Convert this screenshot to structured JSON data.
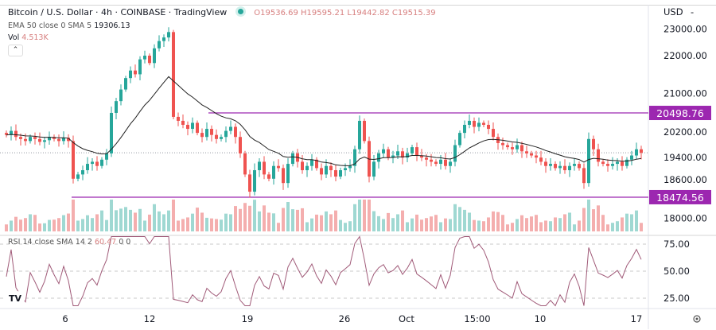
{
  "header": {
    "symbol": "Bitcoin / U.S. Dollar · 4h · COINBASE · TradingView",
    "status_color": "#26a69a",
    "ohlc": "O19536.69 H19595.21 L19442.82 C19515.39",
    "ema_label": "EMA 50 close 0 SMA 5",
    "ema_value": "19306.13",
    "vol_label": "Vol",
    "vol_value": "4.513K",
    "rsi_label": "RSI 14 close SMA 14 2",
    "rsi_value": "60.47",
    "rsi_extra": "0 0"
  },
  "price_axis": {
    "currency": "USD",
    "ticks": [
      "23000.00",
      "22000.00",
      "21000.00",
      "20200.00",
      "19400.00",
      "18600.00",
      "18000.00"
    ],
    "tick_values": [
      23000,
      22000,
      21000,
      20200,
      19400,
      18600,
      18000
    ]
  },
  "rsi_axis": {
    "ticks": [
      "75.00",
      "50.00",
      "25.00"
    ],
    "tick_values": [
      75,
      50,
      25
    ]
  },
  "time_axis": {
    "labels": [
      "6",
      "12",
      "19",
      "26",
      "Oct",
      "15:00",
      "10",
      "17"
    ]
  },
  "levels": [
    {
      "label": "20498.76",
      "value": 20498.76
    },
    {
      "label": "18474.56",
      "value": 18474.56
    }
  ],
  "colors": {
    "up": "#26a69a",
    "down": "#ef5350",
    "level": "#9c27b0",
    "rsi": "#a05a78",
    "ema": "#222222"
  },
  "chart_data": {
    "type": "candlestick",
    "title": "Bitcoin / U.S. Dollar · 4h · COINBASE",
    "ylabel": "USD",
    "ylim": [
      18000,
      23000
    ],
    "scale": "log",
    "closes": [
      19950,
      20050,
      19900,
      19850,
      19800,
      19900,
      19850,
      19780,
      19820,
      19900,
      19850,
      19800,
      19880,
      19800,
      18900,
      19000,
      19100,
      19250,
      19300,
      19200,
      19350,
      19500,
      20500,
      20800,
      21100,
      21400,
      21600,
      21500,
      21900,
      22000,
      21800,
      22200,
      22400,
      22500,
      22650,
      20400,
      20300,
      20200,
      20100,
      20250,
      20000,
      19900,
      20100,
      19950,
      19850,
      19900,
      20050,
      20150,
      19900,
      19500,
      19000,
      18600,
      19100,
      19300,
      19000,
      18900,
      19200,
      19150,
      18800,
      19250,
      19500,
      19300,
      19100,
      19200,
      19350,
      19150,
      19000,
      19200,
      19100,
      18950,
      19100,
      19150,
      19200,
      19600,
      20300,
      19800,
      18950,
      19300,
      19500,
      19600,
      19400,
      19450,
      19550,
      19400,
      19500,
      19650,
      19450,
      19400,
      19350,
      19300,
      19250,
      19350,
      19200,
      19300,
      19700,
      20000,
      20200,
      20300,
      20150,
      20250,
      20200,
      20100,
      19900,
      19750,
      19700,
      19650,
      19600,
      19700,
      19550,
      19500,
      19450,
      19400,
      19300,
      19200,
      19250,
      19150,
      19200,
      19100,
      19200,
      19250,
      19150,
      18800,
      19850,
      19600,
      19300,
      19250,
      19200,
      19250,
      19300,
      19200,
      19350,
      19450,
      19600,
      19515
    ],
    "last_close": 19515.39,
    "indicators": [
      "EMA 50",
      "Volume",
      "RSI 14"
    ],
    "rsi_range": [
      0,
      100
    ]
  }
}
